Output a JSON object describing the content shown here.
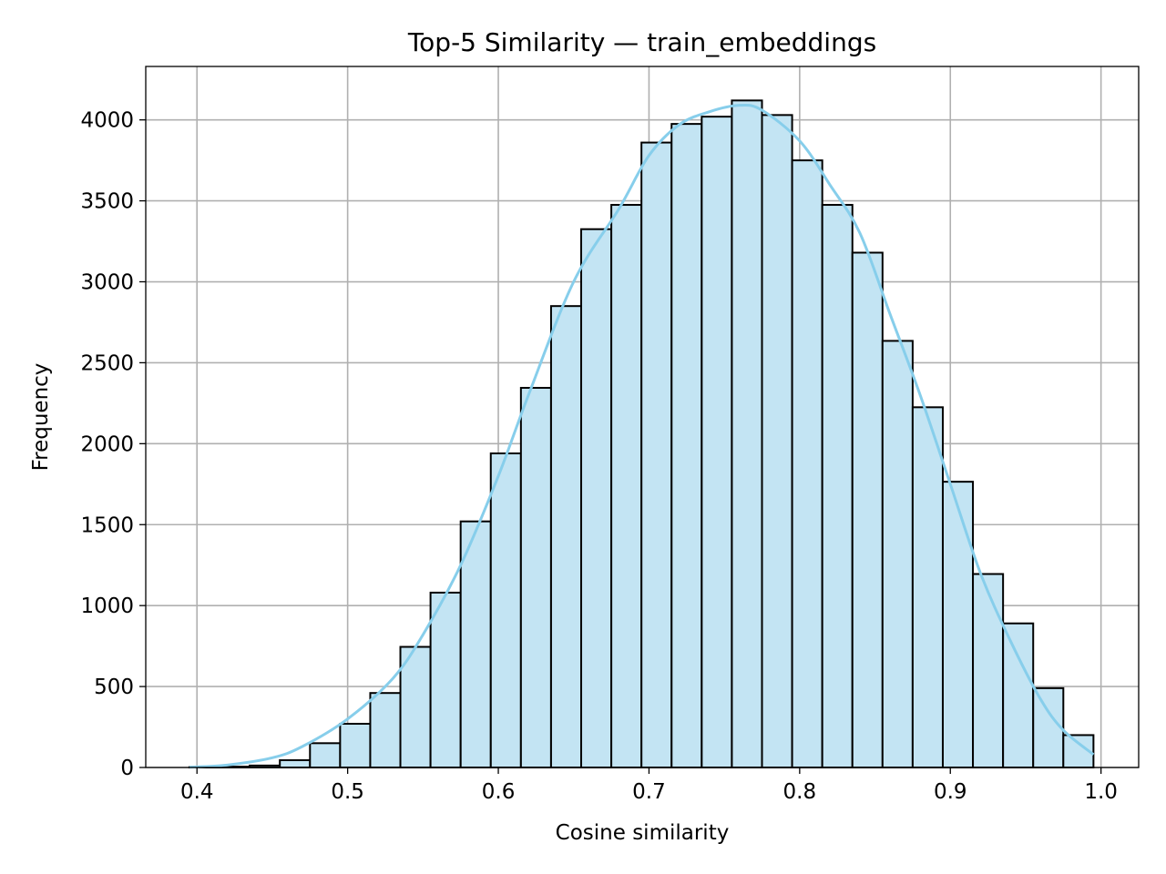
{
  "chart_data": {
    "type": "bar",
    "title": "Top-5 Similarity — train_embeddings",
    "xlabel": "Cosine similarity",
    "ylabel": "Frequency",
    "xlim": [
      0.366,
      1.025
    ],
    "ylim": [
      0,
      4330
    ],
    "grid": true,
    "x_ticks": [
      0.4,
      0.5,
      0.6,
      0.7,
      0.8,
      0.9,
      1.0
    ],
    "x_tick_labels": [
      "0.4",
      "0.5",
      "0.6",
      "0.7",
      "0.8",
      "0.9",
      "1.0"
    ],
    "y_ticks": [
      0,
      500,
      1000,
      1500,
      2000,
      2500,
      3000,
      3500,
      4000
    ],
    "y_tick_labels": [
      "0",
      "500",
      "1000",
      "1500",
      "2000",
      "2500",
      "3000",
      "3500",
      "4000"
    ],
    "colors": {
      "bar_fill": "#c3e4f3",
      "bar_edge": "#000000",
      "kde_line": "#87ceeb",
      "grid": "#b0b0b0"
    },
    "bins": [
      {
        "x0": 0.395,
        "x1": 0.415,
        "count": 2
      },
      {
        "x0": 0.415,
        "x1": 0.435,
        "count": 5
      },
      {
        "x0": 0.435,
        "x1": 0.455,
        "count": 12
      },
      {
        "x0": 0.455,
        "x1": 0.475,
        "count": 45
      },
      {
        "x0": 0.475,
        "x1": 0.495,
        "count": 150
      },
      {
        "x0": 0.495,
        "x1": 0.515,
        "count": 270
      },
      {
        "x0": 0.515,
        "x1": 0.535,
        "count": 460
      },
      {
        "x0": 0.535,
        "x1": 0.555,
        "count": 745
      },
      {
        "x0": 0.555,
        "x1": 0.575,
        "count": 1080
      },
      {
        "x0": 0.575,
        "x1": 0.595,
        "count": 1520
      },
      {
        "x0": 0.595,
        "x1": 0.615,
        "count": 1940
      },
      {
        "x0": 0.615,
        "x1": 0.635,
        "count": 2345
      },
      {
        "x0": 0.635,
        "x1": 0.655,
        "count": 2850
      },
      {
        "x0": 0.655,
        "x1": 0.675,
        "count": 3325
      },
      {
        "x0": 0.675,
        "x1": 0.695,
        "count": 3475
      },
      {
        "x0": 0.695,
        "x1": 0.715,
        "count": 3860
      },
      {
        "x0": 0.715,
        "x1": 0.735,
        "count": 3975
      },
      {
        "x0": 0.735,
        "x1": 0.755,
        "count": 4020
      },
      {
        "x0": 0.755,
        "x1": 0.775,
        "count": 4120
      },
      {
        "x0": 0.775,
        "x1": 0.795,
        "count": 4030
      },
      {
        "x0": 0.795,
        "x1": 0.815,
        "count": 3750
      },
      {
        "x0": 0.815,
        "x1": 0.835,
        "count": 3475
      },
      {
        "x0": 0.835,
        "x1": 0.855,
        "count": 3180
      },
      {
        "x0": 0.855,
        "x1": 0.875,
        "count": 2635
      },
      {
        "x0": 0.875,
        "x1": 0.895,
        "count": 2225
      },
      {
        "x0": 0.895,
        "x1": 0.915,
        "count": 1765
      },
      {
        "x0": 0.915,
        "x1": 0.935,
        "count": 1195
      },
      {
        "x0": 0.935,
        "x1": 0.955,
        "count": 890
      },
      {
        "x0": 0.955,
        "x1": 0.975,
        "count": 490
      },
      {
        "x0": 0.975,
        "x1": 0.995,
        "count": 200
      }
    ],
    "kde": {
      "x": [
        0.395,
        0.42,
        0.45,
        0.47,
        0.5,
        0.53,
        0.55,
        0.575,
        0.6,
        0.62,
        0.65,
        0.68,
        0.7,
        0.72,
        0.74,
        0.76,
        0.775,
        0.8,
        0.82,
        0.84,
        0.86,
        0.88,
        0.9,
        0.92,
        0.94,
        0.96,
        0.975,
        0.995
      ],
      "y": [
        2,
        15,
        60,
        130,
        300,
        550,
        820,
        1250,
        1800,
        2300,
        3000,
        3450,
        3780,
        3970,
        4050,
        4090,
        4060,
        3870,
        3600,
        3300,
        2800,
        2300,
        1750,
        1200,
        780,
        420,
        230,
        80
      ]
    }
  }
}
